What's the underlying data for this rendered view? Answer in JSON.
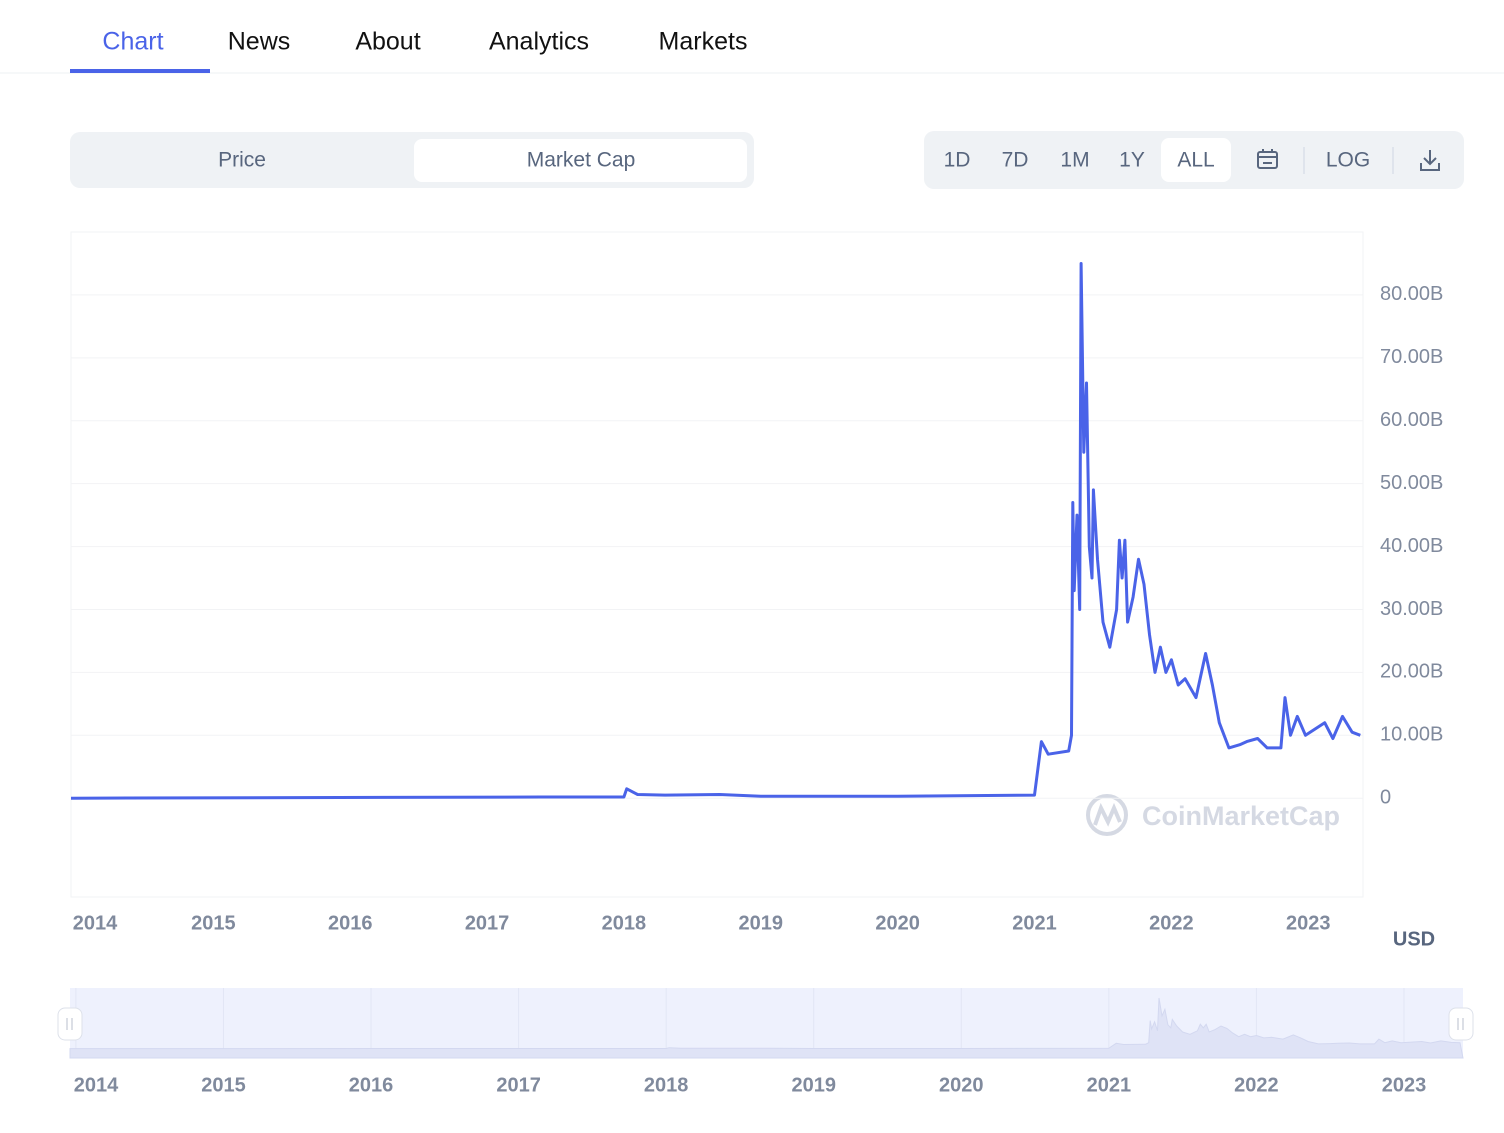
{
  "tabs": [
    "Chart",
    "News",
    "About",
    "Analytics",
    "Markets"
  ],
  "active_tab": 0,
  "toggle": [
    "Price",
    "Market Cap"
  ],
  "active_toggle": 1,
  "ranges": [
    "1D",
    "7D",
    "1M",
    "1Y",
    "ALL"
  ],
  "active_range": 4,
  "log_button": "LOG",
  "watermark": "CoinMarketCap",
  "currency": "USD",
  "chart_data": {
    "type": "line",
    "color": "#4a63e8",
    "x": [
      2013.96,
      2017.4,
      2018.0,
      2018.02,
      2018.1,
      2018.3,
      2018.7,
      2019.0,
      2020.0,
      2021.0,
      2021.05,
      2021.1,
      2021.25,
      2021.27,
      2021.28,
      2021.29,
      2021.31,
      2021.33,
      2021.34,
      2021.36,
      2021.38,
      2021.4,
      2021.42,
      2021.43,
      2021.46,
      2021.5,
      2021.55,
      2021.6,
      2021.62,
      2021.64,
      2021.66,
      2021.68,
      2021.72,
      2021.76,
      2021.8,
      2021.84,
      2021.88,
      2021.92,
      2021.96,
      2022.0,
      2022.05,
      2022.1,
      2022.18,
      2022.25,
      2022.3,
      2022.35,
      2022.42,
      2022.5,
      2022.55,
      2022.63,
      2022.7,
      2022.8,
      2022.83,
      2022.87,
      2022.92,
      2022.98,
      2023.05,
      2023.12,
      2023.18,
      2023.25,
      2023.32,
      2023.38
    ],
    "values": [
      0.0,
      0.2,
      0.2,
      1.5,
      0.6,
      0.5,
      0.6,
      0.3,
      0.3,
      0.5,
      9,
      7,
      7.5,
      10,
      47,
      33,
      45,
      30,
      85,
      55,
      66,
      40,
      35,
      49,
      38,
      28,
      24,
      30,
      41,
      35,
      41,
      28,
      32,
      38,
      34,
      26,
      20,
      24,
      20,
      22,
      18,
      19,
      16,
      23,
      18,
      12,
      8,
      8.5,
      9,
      9.5,
      8,
      8,
      16,
      10,
      13,
      10,
      11,
      12,
      9.5,
      13,
      10.5,
      10
    ],
    "xlim": [
      2013.96,
      2023.4
    ],
    "xticks": [
      2014,
      2015,
      2016,
      2017,
      2018,
      2019,
      2020,
      2021,
      2022,
      2023
    ],
    "ylim": [
      -15.7,
      90
    ],
    "yticks": [
      0,
      {
        "value": 10,
        "label": "10.00B"
      },
      {
        "value": 20,
        "label": "20.00B"
      },
      {
        "value": 30,
        "label": "30.00B"
      },
      {
        "value": 40,
        "label": "40.00B"
      },
      {
        "value": 50,
        "label": "50.00B"
      },
      {
        "value": 60,
        "label": "60.00B"
      },
      {
        "value": 70,
        "label": "70.00B"
      },
      {
        "value": 80,
        "label": "80.00B"
      }
    ],
    "grid": true
  }
}
